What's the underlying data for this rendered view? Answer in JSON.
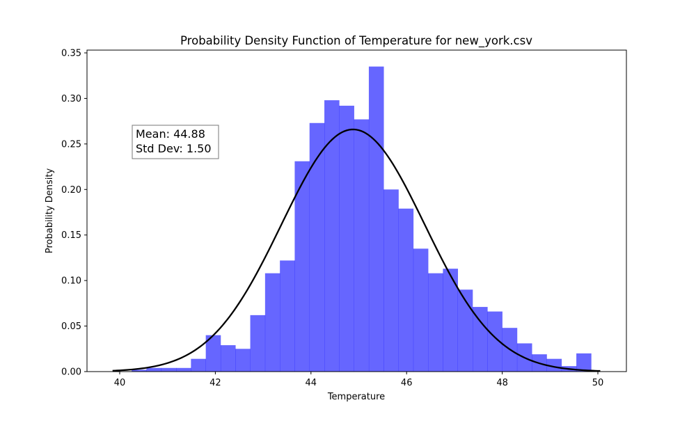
{
  "chart_data": {
    "type": "bar",
    "title": "Probability Density Function of Temperature for new_york.csv",
    "xlabel": "Temperature",
    "ylabel": "Probability Density",
    "xlim": [
      39.5,
      50.5
    ],
    "ylim": [
      0,
      0.35
    ],
    "xticks": [
      "40",
      "42",
      "44",
      "46",
      "48",
      "50"
    ],
    "yticks": [
      "0.00",
      "0.05",
      "0.10",
      "0.15",
      "0.20",
      "0.25",
      "0.30",
      "0.35"
    ],
    "grid": false,
    "histogram": {
      "color": "#0000ff",
      "opacity": 0.6,
      "bin_start": 40.25,
      "bin_width": 0.31,
      "density": [
        0.002,
        0.004,
        0.004,
        0.004,
        0.014,
        0.04,
        0.029,
        0.025,
        0.062,
        0.108,
        0.122,
        0.231,
        0.273,
        0.298,
        0.292,
        0.277,
        0.335,
        0.2,
        0.179,
        0.135,
        0.108,
        0.113,
        0.09,
        0.071,
        0.066,
        0.048,
        0.031,
        0.019,
        0.014,
        0.006,
        0.02
      ]
    },
    "normal_fit": {
      "color": "#000000",
      "mean": 44.88,
      "std": 1.5,
      "x_range": [
        39.85,
        50.05
      ]
    },
    "annotation": {
      "mean_text": "Mean: 44.88",
      "std_text": "Std Dev: 1.50"
    }
  }
}
